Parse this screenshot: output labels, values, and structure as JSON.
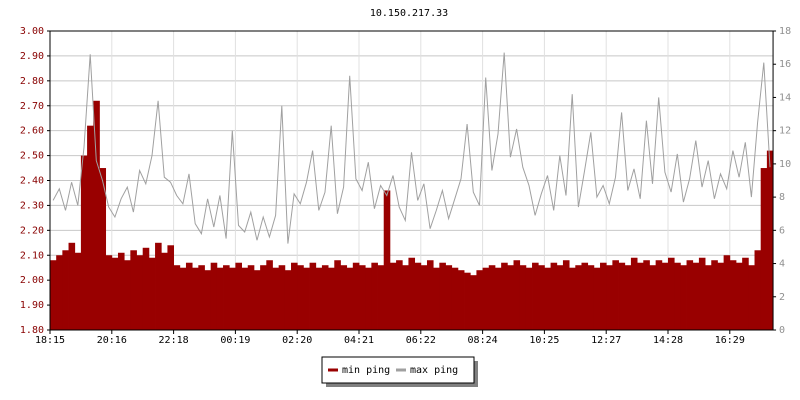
{
  "chart_data": {
    "type": "bar-line",
    "title": "10.150.217.33",
    "categories": [
      "18:15",
      null,
      null,
      null,
      null,
      null,
      null,
      null,
      null,
      null,
      "20:16",
      null,
      null,
      null,
      null,
      null,
      null,
      null,
      null,
      null,
      "22:18",
      null,
      null,
      null,
      null,
      null,
      null,
      null,
      null,
      null,
      "00:19",
      null,
      null,
      null,
      null,
      null,
      null,
      null,
      null,
      null,
      "02:20",
      null,
      null,
      null,
      null,
      null,
      null,
      null,
      null,
      null,
      "04:21",
      null,
      null,
      null,
      null,
      null,
      null,
      null,
      null,
      null,
      "06:22",
      null,
      null,
      null,
      null,
      null,
      null,
      null,
      null,
      null,
      "08:24",
      null,
      null,
      null,
      null,
      null,
      null,
      null,
      null,
      null,
      "10:25",
      null,
      null,
      null,
      null,
      null,
      null,
      null,
      null,
      null,
      "12:27",
      null,
      null,
      null,
      null,
      null,
      null,
      null,
      null,
      null,
      "14:28",
      null,
      null,
      null,
      null,
      null,
      null,
      null,
      null,
      null,
      "16:29",
      null,
      null,
      null,
      null,
      null,
      null
    ],
    "series": [
      {
        "name": "min ping",
        "color": "#990000",
        "axis": "y",
        "values": [
          2.08,
          2.1,
          2.12,
          2.15,
          2.11,
          2.5,
          2.62,
          2.72,
          2.45,
          2.1,
          2.09,
          2.11,
          2.08,
          2.12,
          2.1,
          2.13,
          2.09,
          2.15,
          2.11,
          2.14,
          2.06,
          2.05,
          2.07,
          2.05,
          2.06,
          2.04,
          2.07,
          2.05,
          2.06,
          2.05,
          2.07,
          2.05,
          2.06,
          2.04,
          2.06,
          2.08,
          2.05,
          2.06,
          2.04,
          2.07,
          2.06,
          2.05,
          2.07,
          2.05,
          2.06,
          2.05,
          2.08,
          2.06,
          2.05,
          2.07,
          2.06,
          2.05,
          2.07,
          2.06,
          2.36,
          2.07,
          2.08,
          2.06,
          2.09,
          2.07,
          2.06,
          2.08,
          2.05,
          2.07,
          2.06,
          2.05,
          2.04,
          2.03,
          2.02,
          2.04,
          2.05,
          2.06,
          2.05,
          2.07,
          2.06,
          2.08,
          2.06,
          2.05,
          2.07,
          2.06,
          2.05,
          2.07,
          2.06,
          2.08,
          2.05,
          2.06,
          2.07,
          2.06,
          2.05,
          2.07,
          2.06,
          2.08,
          2.07,
          2.06,
          2.09,
          2.07,
          2.08,
          2.06,
          2.08,
          2.07,
          2.09,
          2.07,
          2.06,
          2.08,
          2.07,
          2.09,
          2.06,
          2.08,
          2.07,
          2.1,
          2.08,
          2.07,
          2.09,
          2.06,
          2.12,
          2.45,
          2.52
        ]
      },
      {
        "name": "max ping",
        "color": "#a0a0a0",
        "axis": "y2",
        "values": [
          7.8,
          8.5,
          7.2,
          8.9,
          7.5,
          11.0,
          16.6,
          10.2,
          9.0,
          7.4,
          6.8,
          7.9,
          8.6,
          7.1,
          9.6,
          8.8,
          10.5,
          13.8,
          9.2,
          8.9,
          8.1,
          7.6,
          9.4,
          6.4,
          5.8,
          7.9,
          6.2,
          8.1,
          5.5,
          12.0,
          6.3,
          5.9,
          7.1,
          5.4,
          6.8,
          5.6,
          6.9,
          13.5,
          5.2,
          8.2,
          7.6,
          8.9,
          10.8,
          7.2,
          8.3,
          12.3,
          7.0,
          8.6,
          15.3,
          9.1,
          8.4,
          10.1,
          7.3,
          8.7,
          8.1,
          9.3,
          7.4,
          6.6,
          10.7,
          7.8,
          8.8,
          6.1,
          7.2,
          8.4,
          6.7,
          7.9,
          9.1,
          12.4,
          8.3,
          7.5,
          15.2,
          9.6,
          11.8,
          16.7,
          10.4,
          12.1,
          9.8,
          8.7,
          6.9,
          8.2,
          9.3,
          7.2,
          10.5,
          8.1,
          14.2,
          7.4,
          9.6,
          11.9,
          8.0,
          8.7,
          7.6,
          9.2,
          13.1,
          8.4,
          9.7,
          7.9,
          12.6,
          8.8,
          14.0,
          9.5,
          8.3,
          10.6,
          7.7,
          9.1,
          11.4,
          8.6,
          10.2,
          7.9,
          9.4,
          8.5,
          10.8,
          9.2,
          11.3,
          8.0,
          12.5,
          16.1,
          9.8
        ]
      }
    ],
    "ylim": [
      1.8,
      3.0
    ],
    "yticks": [
      {
        "value": 1.8,
        "label": "1.80"
      },
      {
        "value": 1.9,
        "label": "1.90"
      },
      {
        "value": 2.0,
        "label": "2.00"
      },
      {
        "value": 2.1,
        "label": "2.10"
      },
      {
        "value": 2.2,
        "label": "2.20"
      },
      {
        "value": 2.3,
        "label": "2.30"
      },
      {
        "value": 2.4,
        "label": "2.40"
      },
      {
        "value": 2.5,
        "label": "2.50"
      },
      {
        "value": 2.6,
        "label": "2.60"
      },
      {
        "value": 2.7,
        "label": "2.70"
      },
      {
        "value": 2.8,
        "label": "2.80"
      },
      {
        "value": 2.9,
        "label": "2.90"
      },
      {
        "value": 3.0,
        "label": "3.00"
      }
    ],
    "y2lim": [
      0,
      18
    ],
    "y2ticks": [
      0,
      2,
      4,
      6,
      8,
      10,
      12,
      14,
      16,
      18
    ],
    "grid": true,
    "legend": "bottom"
  }
}
